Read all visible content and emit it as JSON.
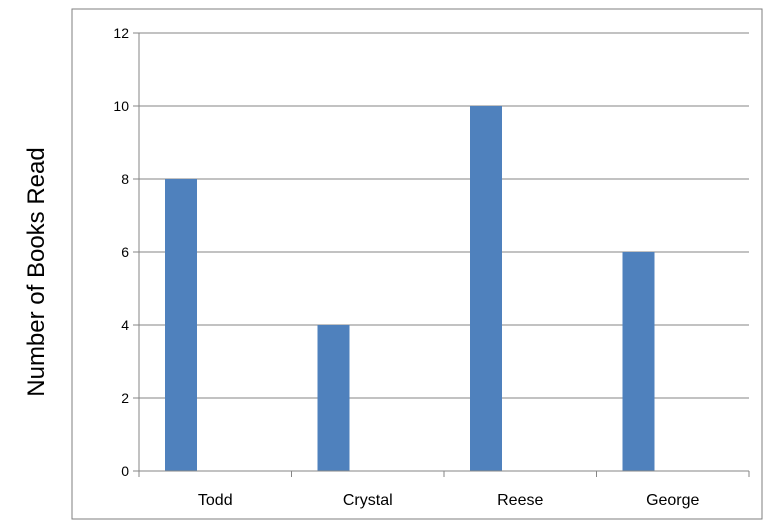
{
  "chart_data": {
    "type": "bar",
    "title": "",
    "xlabel": "",
    "ylabel": "Number of Books Read",
    "categories": [
      "Todd",
      "Crystal",
      "Reese",
      "George"
    ],
    "values": [
      8,
      4,
      10,
      6
    ],
    "ylim": [
      0,
      12
    ],
    "yticks": [
      0,
      2,
      4,
      6,
      8,
      10,
      12
    ],
    "grid": true,
    "legend": "none",
    "colors": {
      "bar": "#4f81bd",
      "grid": "#868686",
      "axis": "#868686",
      "text": "#000000",
      "frame": "#7f7f7f"
    }
  }
}
